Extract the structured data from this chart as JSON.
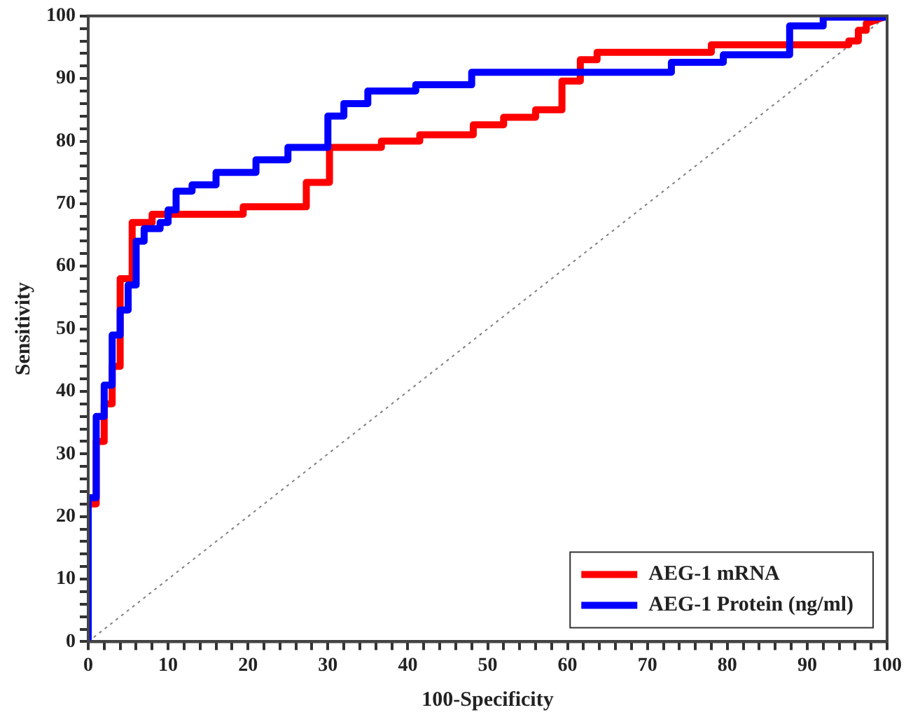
{
  "chart_data": {
    "type": "line",
    "xlabel": "100-Specificity",
    "ylabel": "Sensitivity",
    "xlim": [
      0,
      100
    ],
    "ylim": [
      0,
      100
    ],
    "xticks": [
      0,
      {
        "value": 2,
        "label": null
      },
      {
        "value": 4,
        "label": null
      },
      {
        "value": 6,
        "label": null
      },
      {
        "value": 8,
        "label": null
      },
      10,
      {
        "value": 12,
        "label": null
      },
      {
        "value": 14,
        "label": null
      },
      {
        "value": 16,
        "label": null
      },
      {
        "value": 18,
        "label": null
      },
      20,
      {
        "value": 22,
        "label": null
      },
      {
        "value": 24,
        "label": null
      },
      {
        "value": 26,
        "label": null
      },
      {
        "value": 28,
        "label": null
      },
      30,
      {
        "value": 32,
        "label": null
      },
      {
        "value": 34,
        "label": null
      },
      {
        "value": 36,
        "label": null
      },
      {
        "value": 38,
        "label": null
      },
      40,
      {
        "value": 42,
        "label": null
      },
      {
        "value": 44,
        "label": null
      },
      {
        "value": 46,
        "label": null
      },
      {
        "value": 48,
        "label": null
      },
      50,
      {
        "value": 52,
        "label": null
      },
      {
        "value": 54,
        "label": null
      },
      {
        "value": 56,
        "label": null
      },
      {
        "value": 58,
        "label": null
      },
      60,
      {
        "value": 62,
        "label": null
      },
      {
        "value": 64,
        "label": null
      },
      {
        "value": 66,
        "label": null
      },
      {
        "value": 68,
        "label": null
      },
      70,
      {
        "value": 72,
        "label": null
      },
      {
        "value": 74,
        "label": null
      },
      {
        "value": 76,
        "label": null
      },
      {
        "value": 78,
        "label": null
      },
      80,
      {
        "value": 82,
        "label": null
      },
      {
        "value": 84,
        "label": null
      },
      {
        "value": 86,
        "label": null
      },
      {
        "value": 88,
        "label": null
      },
      90,
      {
        "value": 92,
        "label": null
      },
      {
        "value": 94,
        "label": null
      },
      {
        "value": 96,
        "label": null
      },
      {
        "value": 98,
        "label": null
      },
      100
    ],
    "yticks": [
      0,
      {
        "value": 2,
        "label": null
      },
      {
        "value": 4,
        "label": null
      },
      {
        "value": 6,
        "label": null
      },
      {
        "value": 8,
        "label": null
      },
      10,
      {
        "value": 12,
        "label": null
      },
      {
        "value": 14,
        "label": null
      },
      {
        "value": 16,
        "label": null
      },
      {
        "value": 18,
        "label": null
      },
      20,
      {
        "value": 22,
        "label": null
      },
      {
        "value": 24,
        "label": null
      },
      {
        "value": 26,
        "label": null
      },
      {
        "value": 28,
        "label": null
      },
      30,
      {
        "value": 32,
        "label": null
      },
      {
        "value": 34,
        "label": null
      },
      {
        "value": 36,
        "label": null
      },
      {
        "value": 38,
        "label": null
      },
      40,
      {
        "value": 42,
        "label": null
      },
      {
        "value": 44,
        "label": null
      },
      {
        "value": 46,
        "label": null
      },
      {
        "value": 48,
        "label": null
      },
      50,
      {
        "value": 52,
        "label": null
      },
      {
        "value": 54,
        "label": null
      },
      {
        "value": 56,
        "label": null
      },
      {
        "value": 58,
        "label": null
      },
      60,
      {
        "value": 62,
        "label": null
      },
      {
        "value": 64,
        "label": null
      },
      {
        "value": 66,
        "label": null
      },
      {
        "value": 68,
        "label": null
      },
      70,
      {
        "value": 72,
        "label": null
      },
      {
        "value": 74,
        "label": null
      },
      {
        "value": 76,
        "label": null
      },
      {
        "value": 78,
        "label": null
      },
      80,
      {
        "value": 82,
        "label": null
      },
      {
        "value": 84,
        "label": null
      },
      {
        "value": 86,
        "label": null
      },
      {
        "value": 88,
        "label": null
      },
      90,
      {
        "value": 92,
        "label": null
      },
      {
        "value": 94,
        "label": null
      },
      {
        "value": 96,
        "label": null
      },
      {
        "value": 98,
        "label": null
      },
      100
    ],
    "grid": false,
    "legend": "bottom right",
    "marker": "none",
    "line_style": "solid",
    "series": [
      {
        "color": "#808080",
        "line_style": "dotted",
        "x": [
          0,
          100
        ],
        "values": [
          0,
          100
        ]
      },
      {
        "name": "AEG-1 mRNA",
        "color": "#ff0000",
        "x": [
          0,
          0,
          1,
          1,
          2,
          2,
          3,
          3,
          4,
          4,
          5.5,
          5.5,
          8,
          8,
          19.4,
          19.4,
          27.3,
          27.3,
          30.2,
          30.2,
          36.7,
          36.7,
          41.5,
          41.5,
          48.2,
          48.2,
          52,
          52,
          56,
          56,
          59.3,
          59.3,
          61.6,
          61.6,
          63.7,
          63.7,
          78,
          78,
          95.2,
          95.2,
          96.4,
          96.4,
          97.4,
          97.4,
          100
        ],
        "values": [
          0,
          22,
          22,
          32,
          32,
          38,
          38,
          44,
          44,
          58,
          58,
          67,
          67,
          68.3,
          68.3,
          69.5,
          69.5,
          73.4,
          73.4,
          79,
          79,
          80,
          80,
          81,
          81,
          82.6,
          82.6,
          83.8,
          83.8,
          85,
          85,
          89.6,
          89.6,
          93,
          93,
          94.2,
          94.2,
          95.4,
          95.4,
          96,
          96,
          97.7,
          97.7,
          98.8,
          100
        ]
      },
      {
        "name": "AEG-1 Protein (ng/ml)",
        "color": "#0000ff",
        "x": [
          0,
          0,
          1,
          1,
          2,
          2,
          3,
          3,
          4,
          4,
          5,
          5,
          6,
          6,
          7,
          7,
          9,
          9,
          10,
          10,
          11,
          11,
          13,
          13,
          16,
          16,
          21,
          21,
          25,
          25,
          30,
          30,
          32,
          32,
          35,
          35,
          41,
          41,
          48,
          48,
          73,
          73,
          79.5,
          79.5,
          87.8,
          87.8,
          92,
          92,
          100
        ],
        "values": [
          0,
          23,
          23,
          36,
          36,
          41,
          41,
          49,
          49,
          53,
          53,
          57,
          57,
          64,
          64,
          66,
          66,
          67,
          67,
          69,
          69,
          72,
          72,
          73,
          73,
          75,
          75,
          77,
          77,
          79,
          79,
          84,
          84,
          86,
          86,
          88,
          88,
          89,
          89,
          91,
          91,
          92.6,
          92.6,
          93.8,
          93.8,
          98.4,
          98.4,
          99.8,
          99.8
        ]
      }
    ]
  }
}
